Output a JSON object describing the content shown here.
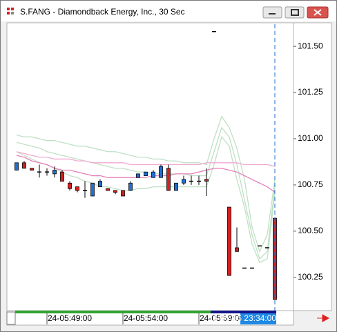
{
  "window": {
    "title": "S.FANG - Diamondback Energy, Inc., 30 Sec"
  },
  "chart_data": {
    "type": "candlestick",
    "categories": [
      null,
      null,
      null,
      null,
      "24-05:49:00",
      null,
      null,
      null,
      null,
      null,
      null,
      null,
      null,
      null,
      "24-05:54:00",
      null,
      null,
      null,
      null,
      null,
      null,
      null,
      null,
      null,
      "24-05:59:00",
      null,
      null,
      null,
      null,
      null,
      null,
      null,
      null,
      null,
      null
    ],
    "crosshair_label": "11-25-16 23:34:00",
    "ylim": [
      100.07,
      101.62
    ],
    "yticks": [
      {
        "value": 100.25,
        "label": "100.25"
      },
      {
        "value": 100.5,
        "label": "100.50"
      },
      100.75,
      {
        "value": 101,
        "label": "101.00"
      },
      101.25,
      {
        "value": 101.5,
        "label": "101.50"
      }
    ],
    "up_color": "#1e6fd6",
    "down_color": "#d42020",
    "open": [
      100.83,
      100.87,
      100.84,
      100.82,
      100.82,
      100.81,
      100.82,
      100.76,
      100.74,
      100.72,
      100.69,
      100.74,
      100.73,
      100.72,
      100.72,
      100.72,
      100.79,
      100.8,
      100.79,
      100.79,
      100.84,
      100.72,
      100.76,
      100.77,
      100.77,
      100.78,
      101.58,
      null,
      100.63,
      100.41,
      100.3,
      100.3,
      100.42,
      100.41,
      100.57
    ],
    "high": [
      100.87,
      100.88,
      100.84,
      100.86,
      100.84,
      100.85,
      100.83,
      100.77,
      100.74,
      100.77,
      100.76,
      100.78,
      100.73,
      100.72,
      100.72,
      100.77,
      100.81,
      100.82,
      100.83,
      100.86,
      100.86,
      100.76,
      100.8,
      100.8,
      100.8,
      100.84,
      101.58,
      null,
      100.63,
      100.52,
      100.3,
      100.3,
      100.42,
      100.41,
      100.57
    ],
    "low": [
      100.83,
      100.84,
      100.83,
      100.79,
      100.8,
      100.79,
      100.77,
      100.72,
      100.71,
      100.68,
      100.69,
      100.74,
      100.72,
      100.7,
      100.69,
      100.72,
      100.79,
      100.8,
      100.79,
      100.79,
      100.72,
      100.72,
      100.75,
      100.75,
      100.75,
      100.69,
      101.58,
      null,
      100.26,
      100.39,
      100.3,
      100.3,
      100.42,
      100.41,
      100.13
    ],
    "close": [
      100.87,
      100.84,
      100.83,
      100.82,
      100.82,
      100.83,
      100.77,
      100.73,
      100.72,
      100.72,
      100.76,
      100.77,
      100.72,
      100.71,
      100.69,
      100.76,
      100.81,
      100.82,
      100.82,
      100.85,
      100.72,
      100.76,
      100.78,
      100.77,
      100.77,
      100.77,
      101.58,
      null,
      100.26,
      100.39,
      100.3,
      100.3,
      100.42,
      100.41,
      100.13
    ],
    "lines": [
      {
        "color": "#bfe0c4",
        "values": [
          101.02,
          101.01,
          101.01,
          101.0,
          100.99,
          100.99,
          100.98,
          100.97,
          100.96,
          100.96,
          100.95,
          100.94,
          100.93,
          100.93,
          100.92,
          100.91,
          100.9,
          100.9,
          100.89,
          100.89,
          100.88,
          100.88,
          100.87,
          100.87,
          100.87,
          100.86,
          101.0,
          101.12,
          101.06,
          100.95,
          100.78,
          100.52,
          100.39,
          100.48,
          100.78
        ]
      },
      {
        "color": "#bfe0c4",
        "values": [
          100.98,
          100.97,
          100.96,
          100.95,
          100.93,
          100.92,
          100.91,
          100.9,
          100.89,
          100.88,
          100.87,
          100.86,
          100.85,
          100.84,
          100.84,
          100.83,
          100.82,
          100.82,
          100.81,
          100.81,
          100.81,
          100.81,
          100.81,
          100.8,
          100.8,
          100.8,
          100.93,
          101.06,
          101.01,
          100.86,
          100.67,
          100.48,
          100.35,
          100.39,
          100.74
        ]
      },
      {
        "color": "#bfe0c4",
        "values": [
          100.93,
          100.91,
          100.89,
          100.87,
          100.86,
          100.84,
          100.82,
          100.8,
          100.79,
          100.77,
          100.76,
          100.74,
          100.74,
          100.73,
          100.72,
          100.72,
          100.73,
          100.73,
          100.74,
          100.74,
          100.74,
          100.74,
          100.74,
          100.74,
          100.74,
          100.74,
          100.86,
          101.01,
          100.96,
          100.78,
          100.63,
          100.43,
          100.33,
          100.35,
          100.71
        ]
      },
      {
        "color": "#f2a8d2",
        "values": [
          100.93,
          100.92,
          100.91,
          100.9,
          100.9,
          100.89,
          100.89,
          100.89,
          100.88,
          100.88,
          100.87,
          100.87,
          100.87,
          100.87,
          100.87,
          100.86,
          100.86,
          100.86,
          100.86,
          100.86,
          100.86,
          100.86,
          100.86,
          100.86,
          100.86,
          100.87,
          100.87,
          100.87,
          100.87,
          100.87,
          100.86,
          100.86,
          100.86,
          100.86,
          100.85
        ]
      },
      {
        "color": "#e57fb8",
        "values": [
          100.91,
          100.9,
          100.88,
          100.87,
          100.86,
          100.84,
          100.83,
          100.83,
          100.82,
          100.81,
          100.8,
          100.8,
          100.79,
          100.79,
          100.79,
          100.79,
          100.79,
          100.79,
          100.8,
          100.8,
          100.8,
          100.81,
          100.81,
          100.81,
          100.82,
          100.83,
          100.84,
          100.84,
          100.83,
          100.82,
          100.8,
          100.78,
          100.76,
          100.74,
          100.71
        ]
      }
    ]
  }
}
